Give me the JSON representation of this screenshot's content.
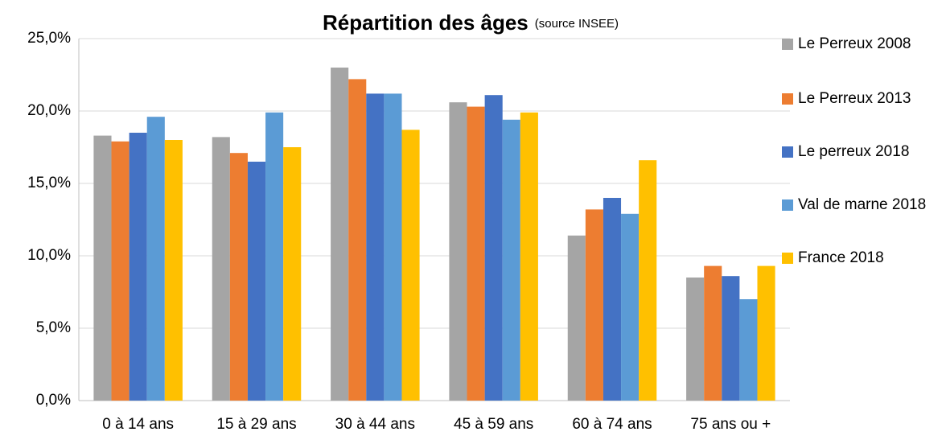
{
  "chart_data": {
    "type": "bar",
    "title": "Répartition des âges",
    "subtitle": "(source INSEE)",
    "categories": [
      "0 à 14 ans",
      "15 à 29 ans",
      "30 à 44 ans",
      "45 à 59 ans",
      "60 à 74 ans",
      "75 ans ou +"
    ],
    "series": [
      {
        "name": "Le Perreux 2008",
        "color": "#a5a5a5",
        "values": [
          18.3,
          18.2,
          23.0,
          20.6,
          11.4,
          8.5
        ]
      },
      {
        "name": "Le Perreux 2013",
        "color": "#ed7d31",
        "values": [
          17.9,
          17.1,
          22.2,
          20.3,
          13.2,
          9.3
        ]
      },
      {
        "name": "Le perreux 2018",
        "color": "#4472c4",
        "values": [
          18.5,
          16.5,
          21.2,
          21.1,
          14.0,
          8.6
        ]
      },
      {
        "name": "Val de marne 2018",
        "color": "#5b9bd5",
        "values": [
          19.6,
          19.9,
          21.2,
          19.4,
          12.9,
          7.0
        ]
      },
      {
        "name": "France 2018",
        "color": "#ffc000",
        "values": [
          18.0,
          17.5,
          18.7,
          19.9,
          16.6,
          9.3
        ]
      }
    ],
    "ylim": [
      0,
      25
    ],
    "yticks": [
      {
        "value": 0,
        "label": "0,0%"
      },
      {
        "value": 5,
        "label": "5,0%"
      },
      {
        "value": 10,
        "label": "10,0%"
      },
      {
        "value": 15,
        "label": "15,0%"
      },
      {
        "value": 20,
        "label": "20,0%"
      },
      {
        "value": 25,
        "label": "25,0%"
      }
    ],
    "grid": true,
    "legend": "right"
  }
}
